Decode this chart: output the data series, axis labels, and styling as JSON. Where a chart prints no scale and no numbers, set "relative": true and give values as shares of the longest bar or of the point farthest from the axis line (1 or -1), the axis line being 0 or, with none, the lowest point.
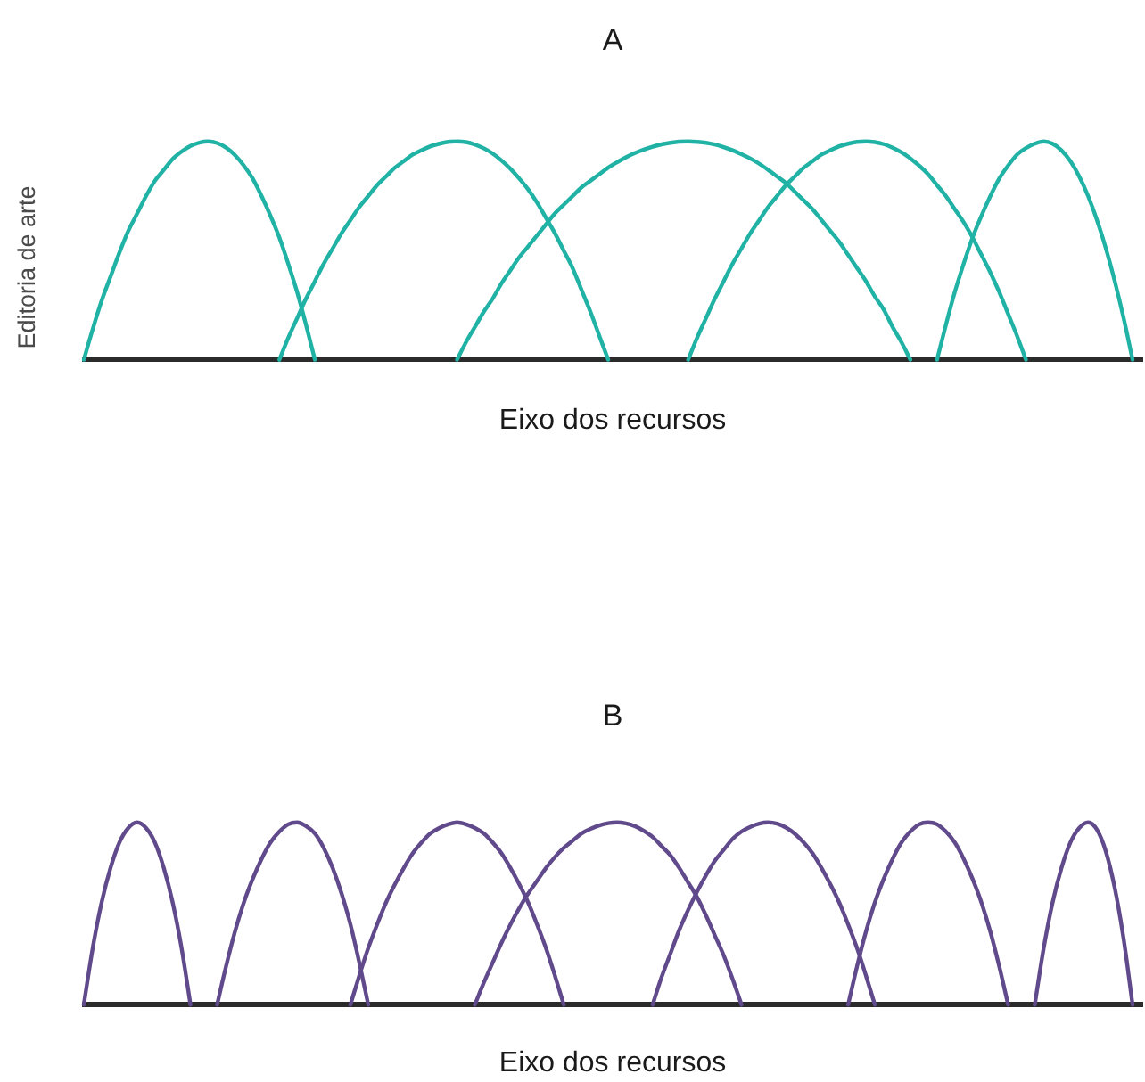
{
  "chart_data": [
    {
      "type": "line",
      "title": "A",
      "xlabel": "Eixo dos recursos",
      "annotations": [
        "Editoria de arte"
      ],
      "relative": true,
      "tick_labels": false,
      "marker": "none",
      "line_style": "solid",
      "categories": [
        null,
        null,
        null,
        null,
        null,
        null,
        null,
        null,
        null,
        null,
        null,
        null,
        null,
        null,
        null,
        null,
        null,
        null,
        null,
        null,
        null,
        null,
        null,
        null,
        null,
        null,
        null,
        null,
        null,
        null,
        null,
        null,
        null,
        null,
        null,
        null,
        null,
        null,
        null,
        null,
        null,
        null,
        null,
        null,
        null,
        null,
        null,
        null,
        null,
        null,
        null,
        null,
        null,
        null,
        null,
        null,
        null,
        null,
        null,
        null,
        null,
        null,
        null,
        null,
        null,
        null,
        null,
        null,
        null,
        null,
        null,
        null,
        null,
        null,
        null,
        null,
        null,
        null,
        null,
        null,
        null,
        null,
        null,
        null,
        null,
        null,
        null,
        null,
        null,
        null,
        null,
        null,
        null,
        null,
        null,
        null,
        null,
        null,
        null,
        null,
        null,
        null,
        null,
        null,
        null,
        null,
        null,
        null,
        null,
        null,
        null,
        null,
        null,
        null,
        null,
        null,
        null,
        null,
        null,
        null
      ],
      "series": [
        {
          "color": "#20b2a5",
          "values": [
            0,
            0.14,
            0.27,
            0.38,
            0.49,
            0.59,
            0.67,
            0.75,
            0.82,
            0.87,
            0.92,
            0.954,
            0.98,
            0.995,
            1,
            0.993,
            0.972,
            0.938,
            0.89,
            0.83,
            0.75,
            0.66,
            0.56,
            0.44,
            0.31,
            0.16,
            0,
            null,
            null,
            null,
            null,
            null,
            null,
            null,
            null,
            null,
            null,
            null,
            null,
            null,
            null,
            null,
            null,
            null,
            null,
            null,
            null,
            null,
            null,
            null,
            null,
            null,
            null,
            null,
            null,
            null,
            null,
            null,
            null,
            null,
            null,
            null,
            null,
            null,
            null,
            null,
            null,
            null,
            null,
            null,
            null,
            null,
            null,
            null,
            null,
            null,
            null,
            null,
            null,
            null,
            null,
            null,
            null,
            null,
            null,
            null,
            null,
            null,
            null,
            null,
            null,
            null,
            null,
            null,
            null,
            null,
            null,
            null,
            null,
            null,
            null,
            null,
            null,
            null,
            null,
            null,
            null,
            null,
            null,
            null,
            null,
            null,
            null,
            null,
            null,
            null,
            null,
            null,
            null,
            null
          ]
        },
        {
          "color": "#20b2a5",
          "values": [
            null,
            null,
            null,
            null,
            null,
            null,
            null,
            null,
            null,
            null,
            null,
            null,
            null,
            null,
            null,
            null,
            null,
            null,
            null,
            null,
            null,
            null,
            0,
            0.1,
            0.19,
            0.28,
            0.36,
            0.44,
            0.51,
            0.58,
            0.64,
            0.7,
            0.75,
            0.8,
            0.84,
            0.88,
            0.91,
            0.94,
            0.96,
            0.978,
            0.99,
            0.998,
            1,
            0.997,
            0.986,
            0.969,
            0.945,
            0.913,
            0.875,
            0.83,
            0.78,
            0.72,
            0.65,
            0.58,
            0.5,
            0.42,
            0.32,
            0.22,
            0.11,
            0,
            null,
            null,
            null,
            null,
            null,
            null,
            null,
            null,
            null,
            null,
            null,
            null,
            null,
            null,
            null,
            null,
            null,
            null,
            null,
            null,
            null,
            null,
            null,
            null,
            null,
            null,
            null,
            null,
            null,
            null,
            null,
            null,
            null,
            null,
            null,
            null,
            null,
            null,
            null,
            null,
            null,
            null,
            null,
            null,
            null,
            null,
            null,
            null,
            null,
            null,
            null,
            null,
            null,
            null,
            null,
            null,
            null,
            null,
            null,
            null
          ]
        },
        {
          "color": "#20b2a5",
          "values": [
            null,
            null,
            null,
            null,
            null,
            null,
            null,
            null,
            null,
            null,
            null,
            null,
            null,
            null,
            null,
            null,
            null,
            null,
            null,
            null,
            null,
            null,
            null,
            null,
            null,
            null,
            null,
            null,
            null,
            null,
            null,
            null,
            null,
            null,
            null,
            null,
            null,
            null,
            null,
            null,
            null,
            null,
            0,
            0.08,
            0.15,
            0.22,
            0.28,
            0.35,
            0.41,
            0.47,
            0.52,
            0.57,
            0.62,
            0.67,
            0.71,
            0.75,
            0.79,
            0.82,
            0.85,
            0.88,
            0.905,
            0.928,
            0.947,
            0.963,
            0.976,
            0.987,
            0.994,
            0.999,
            1,
            0.998,
            0.994,
            0.986,
            0.974,
            0.96,
            0.942,
            0.922,
            0.898,
            0.87,
            0.84,
            0.81,
            0.77,
            0.73,
            0.69,
            0.64,
            0.59,
            0.54,
            0.48,
            0.42,
            0.36,
            0.29,
            0.23,
            0.15,
            0.08,
            0,
            null,
            null,
            null,
            null,
            null,
            null,
            null,
            null,
            null,
            null,
            null,
            null,
            null,
            null,
            null,
            null,
            null,
            null,
            null,
            null,
            null,
            null,
            null,
            null,
            null,
            null
          ]
        },
        {
          "color": "#20b2a5",
          "values": [
            null,
            null,
            null,
            null,
            null,
            null,
            null,
            null,
            null,
            null,
            null,
            null,
            null,
            null,
            null,
            null,
            null,
            null,
            null,
            null,
            null,
            null,
            null,
            null,
            null,
            null,
            null,
            null,
            null,
            null,
            null,
            null,
            null,
            null,
            null,
            null,
            null,
            null,
            null,
            null,
            null,
            null,
            null,
            null,
            null,
            null,
            null,
            null,
            null,
            null,
            null,
            null,
            null,
            null,
            null,
            null,
            null,
            null,
            null,
            null,
            null,
            null,
            null,
            null,
            null,
            null,
            null,
            null,
            0,
            0.1,
            0.19,
            0.28,
            0.36,
            0.44,
            0.51,
            0.58,
            0.64,
            0.7,
            0.75,
            0.8,
            0.84,
            0.88,
            0.91,
            0.94,
            0.96,
            0.978,
            0.99,
            0.998,
            1,
            0.997,
            0.988,
            0.972,
            0.951,
            0.923,
            0.889,
            0.85,
            0.8,
            0.75,
            0.69,
            0.63,
            0.56,
            0.48,
            0.4,
            0.31,
            0.21,
            0.11,
            0,
            null,
            null,
            null,
            null,
            null,
            null,
            null,
            null,
            null,
            null,
            null,
            null,
            null
          ]
        },
        {
          "color": "#20b2a5",
          "values": [
            null,
            null,
            null,
            null,
            null,
            null,
            null,
            null,
            null,
            null,
            null,
            null,
            null,
            null,
            null,
            null,
            null,
            null,
            null,
            null,
            null,
            null,
            null,
            null,
            null,
            null,
            null,
            null,
            null,
            null,
            null,
            null,
            null,
            null,
            null,
            null,
            null,
            null,
            null,
            null,
            null,
            null,
            null,
            null,
            null,
            null,
            null,
            null,
            null,
            null,
            null,
            null,
            null,
            null,
            null,
            null,
            null,
            null,
            null,
            null,
            null,
            null,
            null,
            null,
            null,
            null,
            null,
            null,
            null,
            null,
            null,
            null,
            null,
            null,
            null,
            null,
            null,
            null,
            null,
            null,
            null,
            null,
            null,
            null,
            null,
            null,
            null,
            null,
            null,
            null,
            null,
            null,
            null,
            null,
            null,
            null,
            0,
            0.16,
            0.31,
            0.44,
            0.56,
            0.66,
            0.75,
            0.83,
            0.89,
            0.94,
            0.97,
            0.99,
            1,
            0.99,
            0.96,
            0.91,
            0.84,
            0.75,
            0.64,
            0.51,
            0.36,
            0.19,
            0,
            null
          ]
        }
      ]
    },
    {
      "type": "line",
      "title": "B",
      "xlabel": "Eixo dos recursos",
      "relative": true,
      "tick_labels": false,
      "marker": "none",
      "line_style": "solid",
      "categories": [
        null,
        null,
        null,
        null,
        null,
        null,
        null,
        null,
        null,
        null,
        null,
        null,
        null,
        null,
        null,
        null,
        null,
        null,
        null,
        null,
        null,
        null,
        null,
        null,
        null,
        null,
        null,
        null,
        null,
        null,
        null,
        null,
        null,
        null,
        null,
        null,
        null,
        null,
        null,
        null,
        null,
        null,
        null,
        null,
        null,
        null,
        null,
        null,
        null,
        null,
        null,
        null,
        null,
        null,
        null,
        null,
        null,
        null,
        null,
        null,
        null,
        null,
        null,
        null,
        null,
        null,
        null,
        null,
        null,
        null,
        null,
        null,
        null,
        null,
        null,
        null,
        null,
        null,
        null,
        null,
        null,
        null,
        null,
        null,
        null,
        null,
        null,
        null,
        null,
        null,
        null,
        null,
        null,
        null,
        null,
        null,
        null,
        null,
        null,
        null,
        null,
        null,
        null,
        null,
        null,
        null,
        null,
        null,
        null,
        null,
        null,
        null,
        null,
        null,
        null,
        null,
        null,
        null,
        null,
        null
      ],
      "series": [
        {
          "color": "#604a8c",
          "values": [
            0,
            0.31,
            0.56,
            0.75,
            0.89,
            0.97,
            1,
            0.97,
            0.89,
            0.75,
            0.56,
            0.31,
            0,
            null,
            null,
            null,
            null,
            null,
            null,
            null,
            null,
            null,
            null,
            null,
            null,
            null,
            null,
            null,
            null,
            null,
            null,
            null,
            null,
            null,
            null,
            null,
            null,
            null,
            null,
            null,
            null,
            null,
            null,
            null,
            null,
            null,
            null,
            null,
            null,
            null,
            null,
            null,
            null,
            null,
            null,
            null,
            null,
            null,
            null,
            null,
            null,
            null,
            null,
            null,
            null,
            null,
            null,
            null,
            null,
            null,
            null,
            null,
            null,
            null,
            null,
            null,
            null,
            null,
            null,
            null,
            null,
            null,
            null,
            null,
            null,
            null,
            null,
            null,
            null,
            null,
            null,
            null,
            null,
            null,
            null,
            null,
            null,
            null,
            null,
            null,
            null,
            null,
            null,
            null,
            null,
            null,
            null,
            null,
            null,
            null,
            null,
            null,
            null,
            null,
            null,
            null,
            null,
            null,
            null,
            null
          ]
        },
        {
          "color": "#604a8c",
          "values": [
            null,
            null,
            null,
            null,
            null,
            null,
            null,
            null,
            null,
            null,
            null,
            null,
            null,
            null,
            null,
            0,
            0.21,
            0.4,
            0.56,
            0.69,
            0.8,
            0.89,
            0.95,
            0.99,
            1,
            0.98,
            0.94,
            0.86,
            0.75,
            0.61,
            0.44,
            0.23,
            0,
            null,
            null,
            null,
            null,
            null,
            null,
            null,
            null,
            null,
            null,
            null,
            null,
            null,
            null,
            null,
            null,
            null,
            null,
            null,
            null,
            null,
            null,
            null,
            null,
            null,
            null,
            null,
            null,
            null,
            null,
            null,
            null,
            null,
            null,
            null,
            null,
            null,
            null,
            null,
            null,
            null,
            null,
            null,
            null,
            null,
            null,
            null,
            null,
            null,
            null,
            null,
            null,
            null,
            null,
            null,
            null,
            null,
            null,
            null,
            null,
            null,
            null,
            null,
            null,
            null,
            null,
            null,
            null,
            null,
            null,
            null,
            null,
            null,
            null,
            null,
            null,
            null,
            null,
            null,
            null,
            null,
            null,
            null,
            null,
            null,
            null,
            null
          ]
        },
        {
          "color": "#604a8c",
          "values": [
            null,
            null,
            null,
            null,
            null,
            null,
            null,
            null,
            null,
            null,
            null,
            null,
            null,
            null,
            null,
            null,
            null,
            null,
            null,
            null,
            null,
            null,
            null,
            null,
            null,
            null,
            null,
            null,
            null,
            null,
            0,
            0.16,
            0.31,
            0.44,
            0.56,
            0.66,
            0.75,
            0.83,
            0.89,
            0.94,
            0.97,
            0.99,
            1,
            0.99,
            0.97,
            0.94,
            0.89,
            0.83,
            0.75,
            0.66,
            0.56,
            0.44,
            0.31,
            0.16,
            0,
            null,
            null,
            null,
            null,
            null,
            null,
            null,
            null,
            null,
            null,
            null,
            null,
            null,
            null,
            null,
            null,
            null,
            null,
            null,
            null,
            null,
            null,
            null,
            null,
            null,
            null,
            null,
            null,
            null,
            null,
            null,
            null,
            null,
            null,
            null,
            null,
            null,
            null,
            null,
            null,
            null,
            null,
            null,
            null,
            null,
            null,
            null,
            null,
            null,
            null,
            null,
            null,
            null,
            null,
            null,
            null,
            null,
            null,
            null,
            null,
            null,
            null,
            null,
            null,
            null
          ]
        },
        {
          "color": "#604a8c",
          "values": [
            null,
            null,
            null,
            null,
            null,
            null,
            null,
            null,
            null,
            null,
            null,
            null,
            null,
            null,
            null,
            null,
            null,
            null,
            null,
            null,
            null,
            null,
            null,
            null,
            null,
            null,
            null,
            null,
            null,
            null,
            null,
            null,
            null,
            null,
            null,
            null,
            null,
            null,
            null,
            null,
            null,
            null,
            null,
            null,
            0,
            0.12,
            0.23,
            0.34,
            0.44,
            0.53,
            0.61,
            0.68,
            0.75,
            0.81,
            0.86,
            0.9,
            0.94,
            0.965,
            0.984,
            0.996,
            1,
            0.995,
            0.98,
            0.954,
            0.92,
            0.87,
            0.82,
            0.75,
            0.67,
            0.59,
            0.49,
            0.38,
            0.27,
            0.14,
            0,
            null,
            null,
            null,
            null,
            null,
            null,
            null,
            null,
            null,
            null,
            null,
            null,
            null,
            null,
            null,
            null,
            null,
            null,
            null,
            null,
            null,
            null,
            null,
            null,
            null,
            null,
            null,
            null,
            null,
            null,
            null,
            null,
            null,
            null,
            null,
            null,
            null,
            null,
            null,
            null,
            null,
            null,
            null,
            null,
            null
          ]
        },
        {
          "color": "#604a8c",
          "values": [
            null,
            null,
            null,
            null,
            null,
            null,
            null,
            null,
            null,
            null,
            null,
            null,
            null,
            null,
            null,
            null,
            null,
            null,
            null,
            null,
            null,
            null,
            null,
            null,
            null,
            null,
            null,
            null,
            null,
            null,
            null,
            null,
            null,
            null,
            null,
            null,
            null,
            null,
            null,
            null,
            null,
            null,
            null,
            null,
            null,
            null,
            null,
            null,
            null,
            null,
            null,
            null,
            null,
            null,
            null,
            null,
            null,
            null,
            null,
            null,
            null,
            null,
            null,
            null,
            0,
            0.15,
            0.28,
            0.41,
            0.52,
            0.62,
            0.71,
            0.79,
            0.85,
            0.91,
            0.95,
            0.976,
            0.994,
            1,
            0.993,
            0.972,
            0.938,
            0.89,
            0.83,
            0.75,
            0.66,
            0.56,
            0.44,
            0.31,
            0.16,
            0,
            null,
            null,
            null,
            null,
            null,
            null,
            null,
            null,
            null,
            null,
            null,
            null,
            null,
            null,
            null,
            null,
            null,
            null,
            null,
            null,
            null,
            null,
            null,
            null,
            null,
            null,
            null,
            null,
            null,
            null
          ]
        },
        {
          "color": "#604a8c",
          "values": [
            null,
            null,
            null,
            null,
            null,
            null,
            null,
            null,
            null,
            null,
            null,
            null,
            null,
            null,
            null,
            null,
            null,
            null,
            null,
            null,
            null,
            null,
            null,
            null,
            null,
            null,
            null,
            null,
            null,
            null,
            null,
            null,
            null,
            null,
            null,
            null,
            null,
            null,
            null,
            null,
            null,
            null,
            null,
            null,
            null,
            null,
            null,
            null,
            null,
            null,
            null,
            null,
            null,
            null,
            null,
            null,
            null,
            null,
            null,
            null,
            null,
            null,
            null,
            null,
            null,
            null,
            null,
            null,
            null,
            null,
            null,
            null,
            null,
            null,
            null,
            null,
            null,
            null,
            null,
            null,
            null,
            null,
            null,
            null,
            null,
            null,
            0,
            0.21,
            0.4,
            0.56,
            0.69,
            0.8,
            0.89,
            0.95,
            0.99,
            1,
            0.99,
            0.95,
            0.89,
            0.8,
            0.69,
            0.56,
            0.4,
            0.21,
            0,
            null,
            null,
            null,
            null,
            null,
            null,
            null,
            null,
            null,
            null,
            null,
            null,
            null,
            null,
            null
          ]
        },
        {
          "color": "#604a8c",
          "values": [
            null,
            null,
            null,
            null,
            null,
            null,
            null,
            null,
            null,
            null,
            null,
            null,
            null,
            null,
            null,
            null,
            null,
            null,
            null,
            null,
            null,
            null,
            null,
            null,
            null,
            null,
            null,
            null,
            null,
            null,
            null,
            null,
            null,
            null,
            null,
            null,
            null,
            null,
            null,
            null,
            null,
            null,
            null,
            null,
            null,
            null,
            null,
            null,
            null,
            null,
            null,
            null,
            null,
            null,
            null,
            null,
            null,
            null,
            null,
            null,
            null,
            null,
            null,
            null,
            null,
            null,
            null,
            null,
            null,
            null,
            null,
            null,
            null,
            null,
            null,
            null,
            null,
            null,
            null,
            null,
            null,
            null,
            null,
            null,
            null,
            null,
            null,
            null,
            null,
            null,
            null,
            null,
            null,
            null,
            null,
            null,
            null,
            null,
            null,
            null,
            null,
            null,
            null,
            null,
            null,
            null,
            null,
            0,
            0.31,
            0.56,
            0.75,
            0.89,
            0.97,
            1,
            0.96,
            0.84,
            0.64,
            0.36,
            0,
            null
          ]
        }
      ]
    }
  ]
}
